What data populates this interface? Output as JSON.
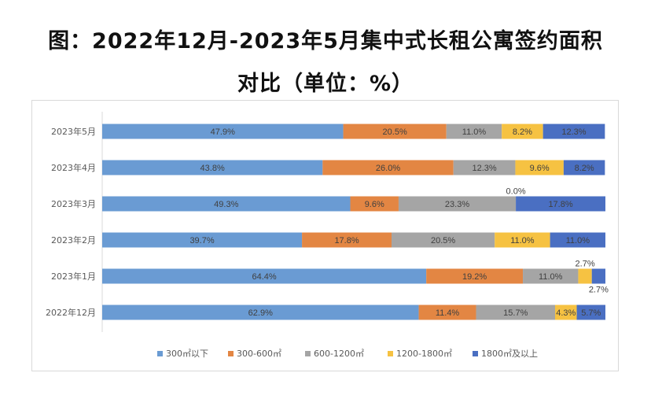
{
  "title_line1": "图：2022年12月-2023年5月集中式长租公寓签约面积",
  "title_line2": "对比（单位：%）",
  "chart_data": {
    "type": "bar",
    "orientation": "horizontal",
    "stacked": "percent",
    "categories": [
      "2023年5月",
      "2023年4月",
      "2023年3月",
      "2023年2月",
      "2023年1月",
      "2022年12月"
    ],
    "series": [
      {
        "name": "300㎡以下",
        "color": "#6a9bd3",
        "values": [
          47.9,
          43.8,
          49.3,
          39.7,
          64.4,
          62.9
        ]
      },
      {
        "name": "300-600㎡",
        "color": "#e38643",
        "values": [
          20.5,
          26.0,
          9.6,
          17.8,
          19.2,
          11.4
        ]
      },
      {
        "name": "600-1200㎡",
        "color": "#a5a5a5",
        "values": [
          11.0,
          12.3,
          23.3,
          20.5,
          11.0,
          15.7
        ]
      },
      {
        "name": "1200-1800㎡",
        "color": "#f6c242",
        "values": [
          8.2,
          9.6,
          0.0,
          11.0,
          2.7,
          4.3
        ]
      },
      {
        "name": "1800㎡及以上",
        "color": "#4a6fc2",
        "values": [
          12.3,
          8.2,
          17.8,
          11.0,
          2.7,
          5.7
        ]
      }
    ],
    "data_labels": true,
    "legend": "bottom",
    "grid": false,
    "xlim": [
      0,
      100
    ]
  }
}
